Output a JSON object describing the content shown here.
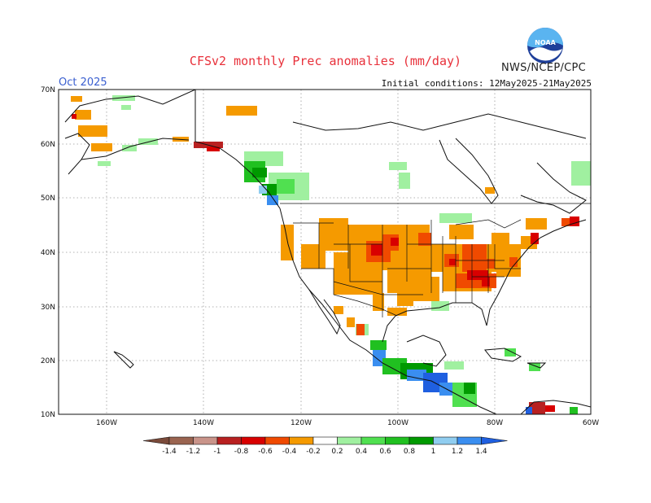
{
  "header": {
    "title": "CFSv2 monthly Prec anomalies (mm/day)",
    "agency": "NWS/NCEP/CPC",
    "month": "Oct 2025",
    "initial_conditions": "Initial conditions: 12May2025-21May2025",
    "logo_text": "NOAA"
  },
  "map": {
    "lat_labels": [
      "70N",
      "60N",
      "50N",
      "40N",
      "30N",
      "20N",
      "10N"
    ],
    "lon_labels": [
      "160W",
      "140W",
      "120W",
      "100W",
      "80W",
      "60W"
    ],
    "anomaly_regions": [
      {
        "name": "central-plains-dry",
        "value": -0.4
      },
      {
        "name": "ohio-valley-dry",
        "value": -0.6
      },
      {
        "name": "southeast-dry",
        "value": -0.8
      },
      {
        "name": "southwest-dry",
        "value": -0.2
      },
      {
        "name": "new-england-dry",
        "value": -0.6
      },
      {
        "name": "southeast-alaska-wet",
        "value": 0.6
      },
      {
        "name": "british-columbia-coast-wet",
        "value": 1.2
      },
      {
        "name": "southern-mexico-wet",
        "value": 1.0
      },
      {
        "name": "central-america-wet",
        "value": 1.2
      }
    ]
  },
  "colorbar": {
    "labels": [
      "-1.4",
      "-1.2",
      "-1",
      "-0.8",
      "-0.6",
      "-0.4",
      "-0.2",
      "0.2",
      "0.4",
      "0.6",
      "0.8",
      "1",
      "1.2",
      "1.4"
    ],
    "colors": [
      "#7a4a3a",
      "#9a6450",
      "#c9948a",
      "#b82020",
      "#d80000",
      "#f04a00",
      "#f59a00",
      "#ffffff",
      "#a0f0a0",
      "#50e050",
      "#20c020",
      "#009a00",
      "#90cdf0",
      "#3a8ef0",
      "#1f5fe0"
    ]
  }
}
